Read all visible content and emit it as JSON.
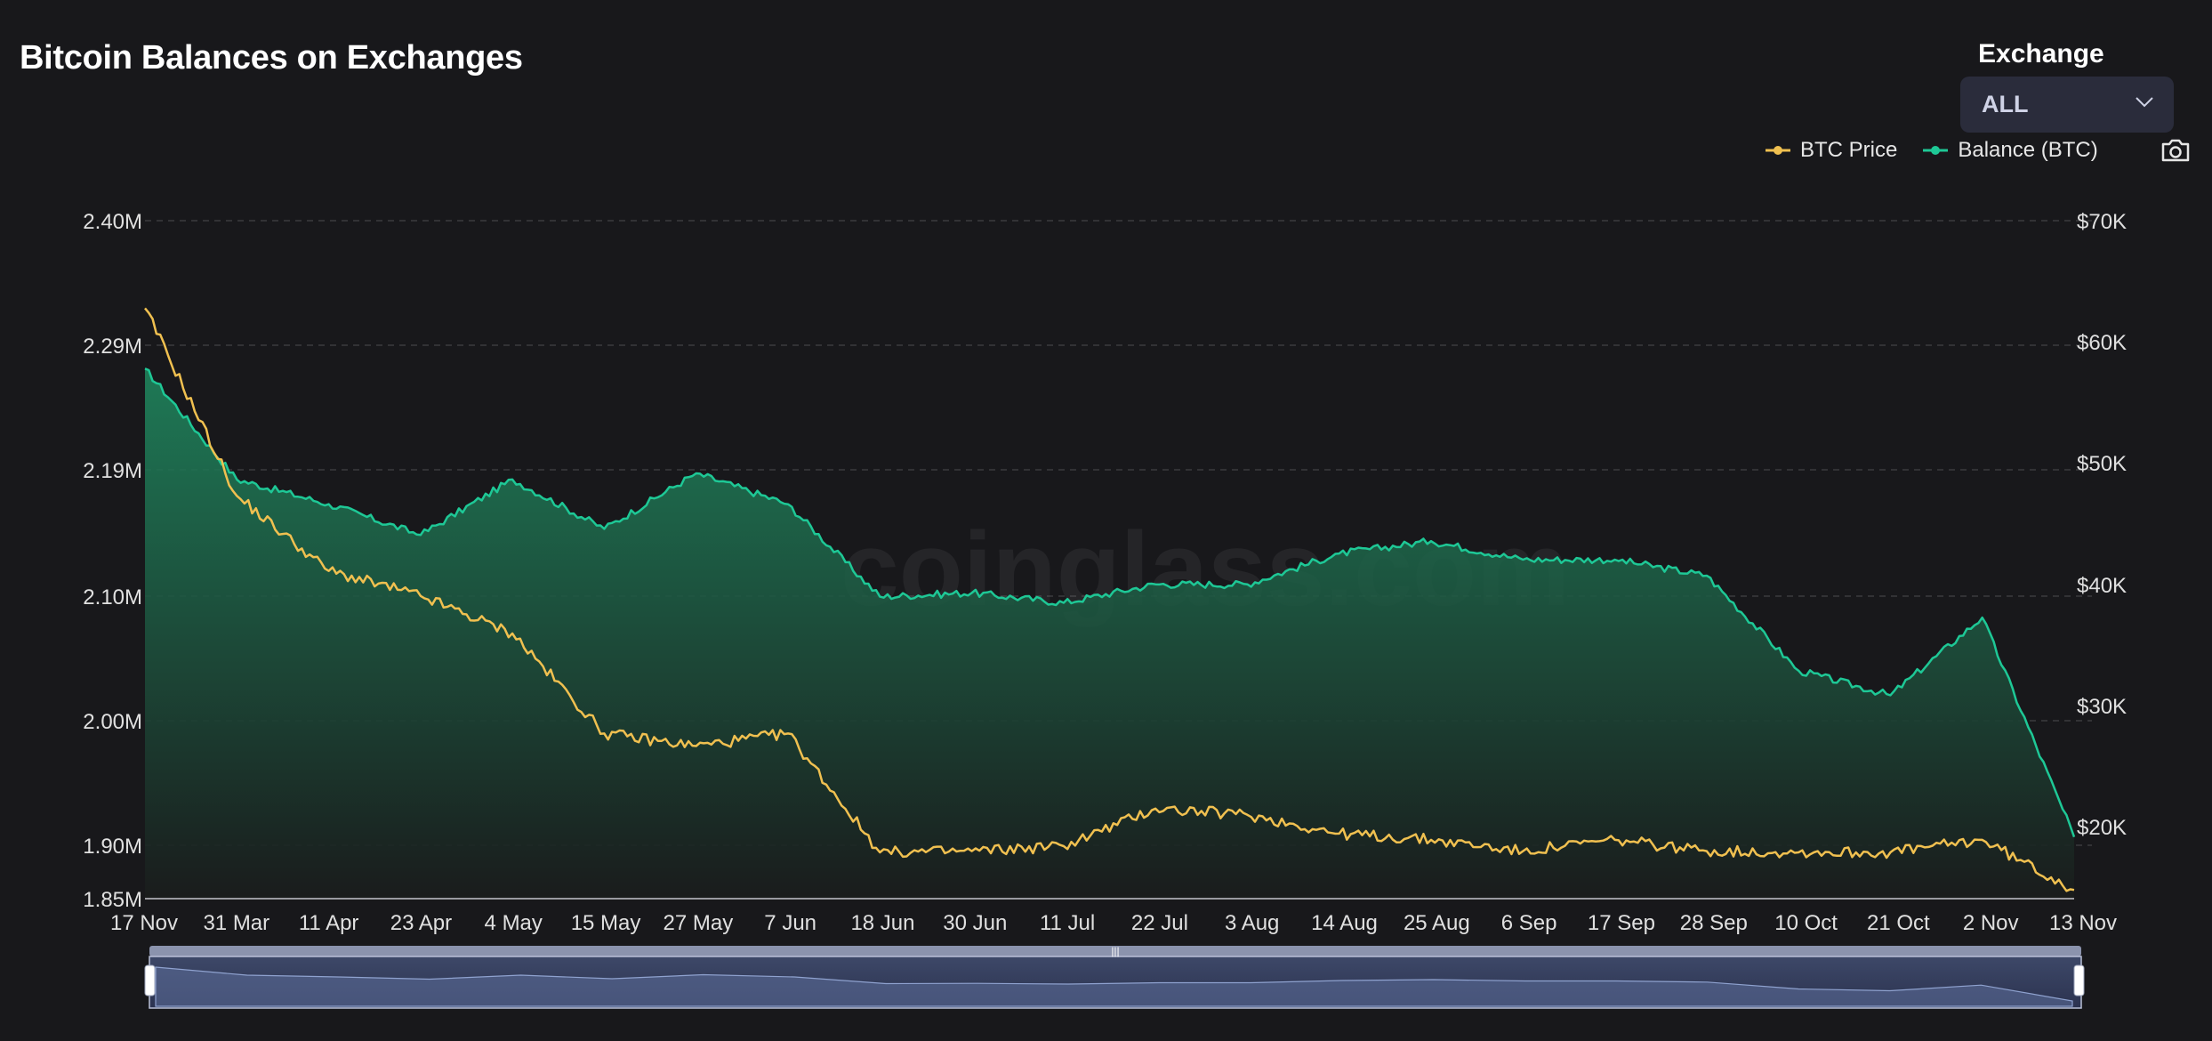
{
  "title": "Bitcoin Balances on Exchanges",
  "exchange": {
    "label": "Exchange",
    "selected": "ALL"
  },
  "legend": [
    {
      "name": "BTC Price",
      "color": "#f0c050"
    },
    {
      "name": "Balance (BTC)",
      "color": "#1ec896"
    }
  ],
  "watermark": "coinglass.com",
  "colors": {
    "background": "#18181b",
    "price": "#f0c050",
    "balance": "#1ec896",
    "grid": "#3a3a3e"
  },
  "chart_data": {
    "type": "line",
    "title": "Bitcoin Balances on Exchanges",
    "x_tick_labels": [
      "17 Nov",
      "31 Mar",
      "11 Apr",
      "23 Apr",
      "4 May",
      "15 May",
      "27 May",
      "7 Jun",
      "18 Jun",
      "30 Jun",
      "11 Jul",
      "22 Jul",
      "3 Aug",
      "14 Aug",
      "25 Aug",
      "6 Sep",
      "17 Sep",
      "28 Sep",
      "10 Oct",
      "21 Oct",
      "2 Nov",
      "13 Nov"
    ],
    "y_left": {
      "tick_labels": [
        "2.40M",
        "2.29M",
        "2.19M",
        "2.10M",
        "2.00M",
        "1.90M",
        "1.85M"
      ],
      "range": [
        1.85,
        2.4
      ],
      "unit": "M BTC"
    },
    "y_right": {
      "tick_labels": [
        "$70K",
        "$60K",
        "$50K",
        "$40K",
        "$30K",
        "$20K"
      ],
      "range": [
        15.8,
        70
      ],
      "unit": "$K"
    },
    "grid": true,
    "legend_position": "top-right",
    "x_index": [
      0,
      1,
      2,
      3,
      4,
      5,
      6,
      7,
      8,
      9,
      10,
      11,
      12,
      13,
      14,
      15,
      16,
      17,
      18,
      19,
      20,
      21
    ],
    "series": [
      {
        "name": "Balance (BTC)",
        "axis": "left",
        "style": "area",
        "values": [
          2.28,
          2.19,
          2.17,
          2.145,
          2.19,
          2.15,
          2.195,
          2.17,
          2.095,
          2.098,
          2.09,
          2.105,
          2.105,
          2.13,
          2.14,
          2.125,
          2.125,
          2.112,
          2.035,
          2.015,
          2.078,
          1.9
        ]
      },
      {
        "name": "BTC Price",
        "axis": "right",
        "style": "line",
        "values": [
          63,
          48,
          42,
          40,
          37,
          29,
          28,
          29,
          19.5,
          19.6,
          20,
          23,
          22.5,
          21,
          20.5,
          19.6,
          20.5,
          19.6,
          19.5,
          19.5,
          20.5,
          16.5
        ]
      }
    ]
  },
  "navigator": {
    "handle_grip": "|||"
  }
}
